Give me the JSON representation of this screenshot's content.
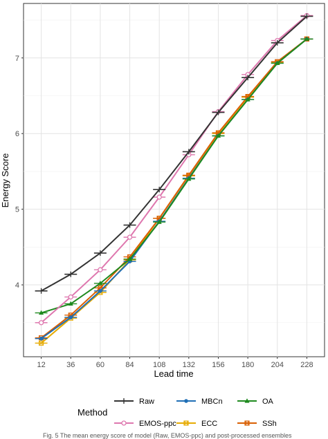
{
  "chart_data": {
    "type": "line",
    "xlabel": "Lead time",
    "ylabel": "Energy Score",
    "x": [
      12,
      36,
      60,
      84,
      108,
      132,
      156,
      180,
      204,
      228
    ],
    "xticks": [
      "12",
      "36",
      "60",
      "84",
      "108",
      "132",
      "156",
      "180",
      "204",
      "228"
    ],
    "yticks": [
      "4",
      "5",
      "6",
      "7"
    ],
    "ytick_values": [
      4,
      5,
      6,
      7
    ],
    "ylim": [
      3.05,
      7.72
    ],
    "grid": true,
    "legend_title": "Method",
    "legend_position": "bottom",
    "series": [
      {
        "name": "Raw",
        "color": "#333333",
        "marker": "plus",
        "values": [
          3.92,
          4.14,
          4.42,
          4.79,
          5.26,
          5.76,
          6.28,
          6.74,
          7.2,
          7.55
        ]
      },
      {
        "name": "MBCn",
        "color": "#1f6eb5",
        "marker": "circle",
        "values": [
          3.29,
          3.57,
          3.92,
          4.31,
          4.84,
          5.41,
          5.97,
          6.45,
          6.93,
          7.25
        ]
      },
      {
        "name": "OA",
        "color": "#1f8a1f",
        "marker": "triangle",
        "values": [
          3.63,
          3.75,
          4.02,
          4.34,
          4.83,
          5.4,
          5.97,
          6.45,
          6.93,
          7.25
        ]
      },
      {
        "name": "EMOS-ppc",
        "color": "#de77ae",
        "marker": "circle-open",
        "values": [
          3.5,
          3.84,
          4.2,
          4.63,
          5.16,
          5.72,
          6.29,
          6.78,
          7.23,
          7.56
        ]
      },
      {
        "name": "ECC",
        "color": "#e6ab02",
        "marker": "square-cross",
        "values": [
          3.23,
          3.56,
          3.9,
          4.33,
          4.88,
          5.44,
          6.0,
          6.48,
          6.94,
          7.25
        ]
      },
      {
        "name": "SSh",
        "color": "#d95f02",
        "marker": "square-cross",
        "values": [
          3.3,
          3.6,
          3.96,
          4.37,
          4.88,
          5.45,
          6.01,
          6.49,
          6.95,
          7.25
        ]
      }
    ],
    "caption": "Fig. 5  The mean energy score of model (Raw, EMOS-ppc) and post-processed ensembles"
  }
}
